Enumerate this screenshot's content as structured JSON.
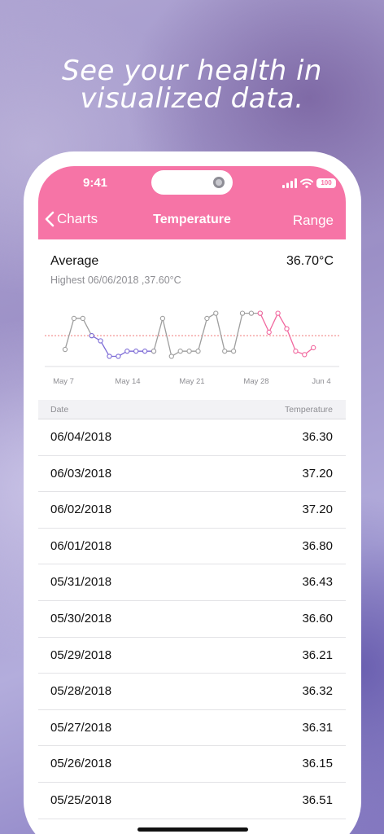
{
  "tagline": "See your health in visualized data.",
  "status_bar": {
    "time": "9:41",
    "battery": "100"
  },
  "nav": {
    "back_label": "Charts",
    "title": "Temperature",
    "right_label": "Range"
  },
  "summary": {
    "average_label": "Average",
    "average_value": "36.70°C",
    "highest_text": "Highest 06/06/2018 ,37.60°C"
  },
  "chart_data": {
    "type": "line",
    "x_tick_labels": [
      "May 7",
      "May 14",
      "May 21",
      "May 28",
      "Jun 4"
    ],
    "average_line": 36.7,
    "ylim": [
      35.9,
      37.6
    ],
    "grid": false,
    "series": [
      {
        "segment": "gray",
        "color": "#9e9e9e",
        "points": [
          {
            "x": 0,
            "y": 36.3
          },
          {
            "x": 1,
            "y": 37.2
          },
          {
            "x": 2,
            "y": 37.2
          },
          {
            "x": 3,
            "y": 36.7
          }
        ]
      },
      {
        "segment": "purple",
        "color": "#7c6ad6",
        "points": [
          {
            "x": 3,
            "y": 36.7
          },
          {
            "x": 4,
            "y": 36.55
          },
          {
            "x": 5,
            "y": 36.1
          },
          {
            "x": 6,
            "y": 36.1
          },
          {
            "x": 7,
            "y": 36.25
          },
          {
            "x": 8,
            "y": 36.25
          },
          {
            "x": 9,
            "y": 36.25
          },
          {
            "x": 10,
            "y": 36.25
          }
        ]
      },
      {
        "segment": "gray",
        "color": "#9e9e9e",
        "points": [
          {
            "x": 10,
            "y": 36.25
          },
          {
            "x": 11,
            "y": 37.2
          },
          {
            "x": 12,
            "y": 36.1
          },
          {
            "x": 13,
            "y": 36.25
          },
          {
            "x": 14,
            "y": 36.25
          },
          {
            "x": 15,
            "y": 36.25
          },
          {
            "x": 16,
            "y": 37.2
          },
          {
            "x": 17,
            "y": 37.35
          },
          {
            "x": 18,
            "y": 36.25
          },
          {
            "x": 19,
            "y": 36.25
          },
          {
            "x": 20,
            "y": 37.35
          },
          {
            "x": 21,
            "y": 37.35
          },
          {
            "x": 22,
            "y": 37.35
          }
        ]
      },
      {
        "segment": "pink",
        "color": "#f1679e",
        "points": [
          {
            "x": 22,
            "y": 37.35
          },
          {
            "x": 23,
            "y": 36.8
          },
          {
            "x": 24,
            "y": 37.35
          },
          {
            "x": 25,
            "y": 36.9
          },
          {
            "x": 26,
            "y": 36.25
          },
          {
            "x": 27,
            "y": 36.15
          },
          {
            "x": 28,
            "y": 36.35
          }
        ]
      }
    ]
  },
  "table": {
    "columns": [
      "Date",
      "Temperature"
    ],
    "rows": [
      {
        "date": "06/04/2018",
        "temp": "36.30"
      },
      {
        "date": "06/03/2018",
        "temp": "37.20"
      },
      {
        "date": "06/02/2018",
        "temp": "37.20"
      },
      {
        "date": "06/01/2018",
        "temp": "36.80"
      },
      {
        "date": "05/31/2018",
        "temp": "36.43"
      },
      {
        "date": "05/30/2018",
        "temp": "36.60"
      },
      {
        "date": "05/29/2018",
        "temp": "36.21"
      },
      {
        "date": "05/28/2018",
        "temp": "36.32"
      },
      {
        "date": "05/27/2018",
        "temp": "36.31"
      },
      {
        "date": "05/26/2018",
        "temp": "36.15"
      },
      {
        "date": "05/25/2018",
        "temp": "36.51"
      }
    ]
  },
  "colors": {
    "accent": "#f674a6",
    "chart_gray": "#9e9e9e",
    "chart_purple": "#7c6ad6",
    "chart_pink": "#f1679e",
    "average_line": "#f07a7a"
  },
  "icons": [
    "chevron-left-icon",
    "signal-icon",
    "wifi-icon",
    "battery-icon"
  ]
}
